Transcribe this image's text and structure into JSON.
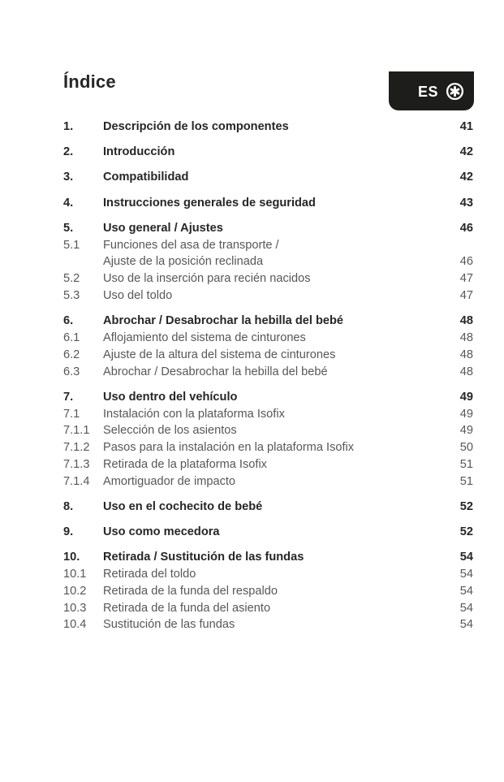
{
  "page": {
    "title": "Índice",
    "language_badge": {
      "label": "ES",
      "icon": "circled-asterisk-icon"
    }
  },
  "colors": {
    "badge_bg": "#1d1d1b",
    "heading_text": "#262625",
    "entry_text": "#575756",
    "badge_foreground": "#ffffff",
    "page_background": "#ffffff"
  },
  "toc": {
    "groups": [
      {
        "entries": [
          {
            "num": "1.",
            "lines": [
              "Descripción de los componentes"
            ],
            "page": "41",
            "bold": true
          }
        ]
      },
      {
        "entries": [
          {
            "num": "2.",
            "lines": [
              "Introducción"
            ],
            "page": "42",
            "bold": true
          }
        ]
      },
      {
        "entries": [
          {
            "num": "3.",
            "lines": [
              "Compatibilidad"
            ],
            "page": "42",
            "bold": true
          }
        ]
      },
      {
        "entries": [
          {
            "num": "4.",
            "lines": [
              "Instrucciones generales de seguridad"
            ],
            "page": "43",
            "bold": true
          }
        ]
      },
      {
        "entries": [
          {
            "num": "5.",
            "lines": [
              "Uso general / Ajustes"
            ],
            "page": "46",
            "bold": true
          },
          {
            "num": "5.1",
            "lines": [
              "Funciones del asa de transporte /",
              "Ajuste de la posición reclinada"
            ],
            "page": "46",
            "bold": false
          },
          {
            "num": "5.2",
            "lines": [
              "Uso de la inserción para recién nacidos"
            ],
            "page": "47",
            "bold": false
          },
          {
            "num": "5.3",
            "lines": [
              "Uso del toldo"
            ],
            "page": "47",
            "bold": false
          }
        ]
      },
      {
        "entries": [
          {
            "num": "6.",
            "lines": [
              "Abrochar / Desabrochar la hebilla del bebé"
            ],
            "page": "48",
            "bold": true
          },
          {
            "num": "6.1",
            "lines": [
              "Aflojamiento del sistema de cinturones"
            ],
            "page": "48",
            "bold": false
          },
          {
            "num": "6.2",
            "lines": [
              "Ajuste de la altura del sistema de cinturones"
            ],
            "page": "48",
            "bold": false
          },
          {
            "num": "6.3",
            "lines": [
              "Abrochar / Desabrochar la hebilla del bebé"
            ],
            "page": "48",
            "bold": false
          }
        ]
      },
      {
        "entries": [
          {
            "num": "7.",
            "lines": [
              "Uso dentro del vehículo"
            ],
            "page": "49",
            "bold": true
          },
          {
            "num": "7.1",
            "lines": [
              "Instalación con la plataforma Isofix"
            ],
            "page": "49",
            "bold": false
          },
          {
            "num": "7.1.1",
            "lines": [
              "Selección de los asientos"
            ],
            "page": "49",
            "bold": false
          },
          {
            "num": "7.1.2",
            "lines": [
              "Pasos para la instalación en la plataforma Isofix"
            ],
            "page": "50",
            "bold": false
          },
          {
            "num": "7.1.3",
            "lines": [
              "Retirada de la plataforma Isofix"
            ],
            "page": "51",
            "bold": false
          },
          {
            "num": "7.1.4",
            "lines": [
              "Amortiguador de impacto"
            ],
            "page": "51",
            "bold": false
          }
        ]
      },
      {
        "entries": [
          {
            "num": "8.",
            "lines": [
              "Uso en el cochecito de bebé"
            ],
            "page": "52",
            "bold": true
          }
        ]
      },
      {
        "entries": [
          {
            "num": "9.",
            "lines": [
              "Uso como mecedora"
            ],
            "page": "52",
            "bold": true
          }
        ]
      },
      {
        "entries": [
          {
            "num": "10.",
            "lines": [
              "Retirada / Sustitución de las fundas"
            ],
            "page": "54",
            "bold": true
          },
          {
            "num": "10.1",
            "lines": [
              "Retirada del toldo"
            ],
            "page": "54",
            "bold": false
          },
          {
            "num": "10.2",
            "lines": [
              "Retirada de la funda del respaldo"
            ],
            "page": "54",
            "bold": false
          },
          {
            "num": "10.3",
            "lines": [
              "Retirada de la funda del asiento"
            ],
            "page": "54",
            "bold": false
          },
          {
            "num": "10.4",
            "lines": [
              "Sustitución de las fundas"
            ],
            "page": "54",
            "bold": false
          }
        ]
      }
    ]
  }
}
